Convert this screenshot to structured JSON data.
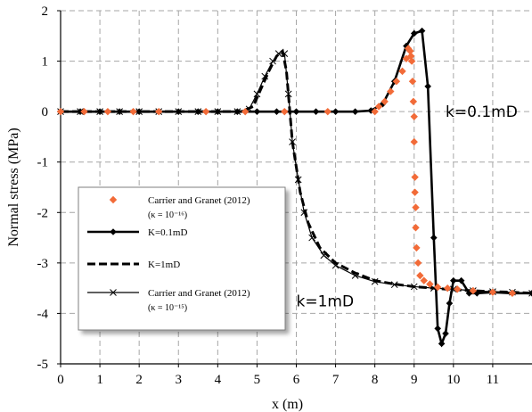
{
  "chart_data": {
    "type": "line",
    "xlabel": "x (m)",
    "ylabel": "Normal stress (MPa)",
    "xlim": [
      0,
      12
    ],
    "ylim": [
      -5,
      2
    ],
    "x_ticks": [
      "0",
      "1",
      "2",
      "3",
      "4",
      "5",
      "6",
      "7",
      "8",
      "9",
      "10",
      "11"
    ],
    "y_ticks": [
      "2",
      "1",
      "0",
      "-1",
      "-2",
      "-3",
      "-4",
      "-5"
    ],
    "grid": true,
    "legend_position": "left-center",
    "annotations": [
      {
        "text": "k=0.1mD",
        "x": 9.8,
        "y": 0.0
      },
      {
        "text": "k=1mD",
        "x": 6.0,
        "y": -3.75
      }
    ],
    "series": [
      {
        "name": "K=0.1mD",
        "style": "solid-diamond",
        "color": "#000000",
        "x": [
          0,
          0.5,
          1,
          1.5,
          2,
          2.5,
          3,
          3.5,
          4,
          4.5,
          5,
          5.5,
          6,
          6.5,
          7,
          7.5,
          7.9,
          8.2,
          8.5,
          8.8,
          9.0,
          9.2,
          9.35,
          9.5,
          9.6,
          9.7,
          9.8,
          9.9,
          10.0,
          10.2,
          10.4,
          10.6,
          11,
          11.5,
          12
        ],
        "y": [
          0,
          0,
          0,
          0,
          0,
          0,
          0,
          0,
          0,
          0,
          0,
          0,
          0,
          0,
          0,
          0,
          0.02,
          0.15,
          0.6,
          1.3,
          1.55,
          1.6,
          0.5,
          -2.5,
          -4.3,
          -4.6,
          -4.4,
          -3.8,
          -3.35,
          -3.35,
          -3.6,
          -3.6,
          -3.58,
          -3.6,
          -3.6
        ]
      },
      {
        "name": "K=1mD",
        "style": "dashed",
        "color": "#000000",
        "x": [
          0,
          1,
          2,
          3,
          4,
          4.6,
          4.9,
          5.1,
          5.3,
          5.5,
          5.65,
          5.75,
          5.9,
          6.1,
          6.3,
          6.6,
          7,
          7.5,
          8,
          8.5,
          9,
          9.5,
          10,
          10.5,
          11,
          11.5,
          12
        ],
        "y": [
          0,
          0,
          0,
          0,
          0,
          0,
          0.1,
          0.45,
          0.8,
          1.1,
          1.2,
          0.8,
          -0.6,
          -1.6,
          -2.2,
          -2.7,
          -3.0,
          -3.2,
          -3.35,
          -3.42,
          -3.47,
          -3.5,
          -3.53,
          -3.55,
          -3.57,
          -3.58,
          -3.6
        ]
      },
      {
        "name": "Carrier and Granet (2012) (κ = 10⁻¹⁵)",
        "style": "solid-x",
        "color": "#000000",
        "x": [
          0,
          0.5,
          1,
          1.5,
          2,
          2.5,
          3,
          3.5,
          4,
          4.5,
          4.8,
          5.0,
          5.2,
          5.4,
          5.55,
          5.7,
          5.8,
          5.9,
          6.05,
          6.2,
          6.4,
          6.7,
          7.0,
          7.5,
          8,
          8.5,
          9,
          9.5,
          10,
          10.5,
          11,
          11.5,
          12
        ],
        "y": [
          0,
          0,
          0,
          0,
          0,
          0,
          0,
          0,
          0,
          0,
          0.05,
          0.35,
          0.7,
          1.0,
          1.15,
          1.15,
          0.35,
          -0.6,
          -1.35,
          -2.0,
          -2.5,
          -2.85,
          -3.05,
          -3.25,
          -3.37,
          -3.43,
          -3.47,
          -3.5,
          -3.52,
          -3.55,
          -3.57,
          -3.58,
          -3.6
        ]
      },
      {
        "name": "Carrier and Granet (2012) (κ = 10⁻¹⁶)",
        "style": "markers-diamond",
        "color": "#F26B38",
        "x": [
          0,
          0.6,
          1.2,
          1.85,
          2.5,
          3.7,
          4.7,
          5.7,
          6.8,
          8.0,
          8.1,
          8.25,
          8.4,
          8.55,
          8.7,
          8.8,
          8.85,
          8.9,
          8.92,
          8.94,
          8.96,
          8.98,
          9.0,
          9.0,
          9.02,
          9.02,
          9.04,
          9.04,
          9.06,
          9.1,
          9.15,
          9.25,
          9.4,
          9.6,
          9.85,
          10.1,
          10.5,
          11,
          11.5
        ],
        "y": [
          0,
          0,
          0,
          0,
          0,
          0,
          0,
          0,
          0,
          0.0,
          0.1,
          0.2,
          0.4,
          0.6,
          0.8,
          1.05,
          1.25,
          1.2,
          1.1,
          1.0,
          0.6,
          0.2,
          -0.1,
          -0.6,
          -1.3,
          -1.6,
          -1.9,
          -2.3,
          -2.7,
          -3.0,
          -3.25,
          -3.35,
          -3.42,
          -3.48,
          -3.5,
          -3.52,
          -3.55,
          -3.58,
          -3.6
        ]
      }
    ],
    "legend": [
      {
        "label": "Carrier and Granet (2012)",
        "sub": "(κ = 10⁻¹⁶)",
        "style": "markers-diamond"
      },
      {
        "label": "K=0.1mD",
        "sub": "",
        "style": "solid-diamond"
      },
      {
        "label": "K=1mD",
        "sub": "",
        "style": "dashed"
      },
      {
        "label": "Carrier and Granet (2012)",
        "sub": "(κ = 10⁻¹⁵)",
        "style": "solid-x"
      }
    ]
  }
}
